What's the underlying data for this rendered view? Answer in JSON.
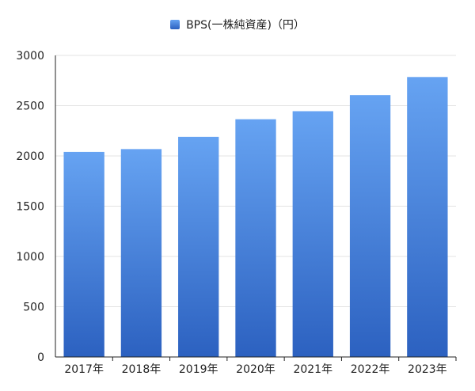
{
  "chart_data": {
    "type": "bar",
    "categories": [
      "2017年",
      "2018年",
      "2019年",
      "2020年",
      "2021年",
      "2022年",
      "2023年"
    ],
    "series": [
      {
        "name": "BPS(一株純資産)（円）",
        "values": [
          2040,
          2068,
          2190,
          2365,
          2445,
          2605,
          2785
        ],
        "color_top": "#66a3f2",
        "color_bottom": "#2c61c0"
      }
    ],
    "y_ticks": [
      "0",
      "500",
      "1000",
      "1500",
      "2000",
      "2500",
      "3000"
    ],
    "ylim": [
      0,
      3000
    ],
    "grid": true,
    "legend_position": "top-center"
  }
}
